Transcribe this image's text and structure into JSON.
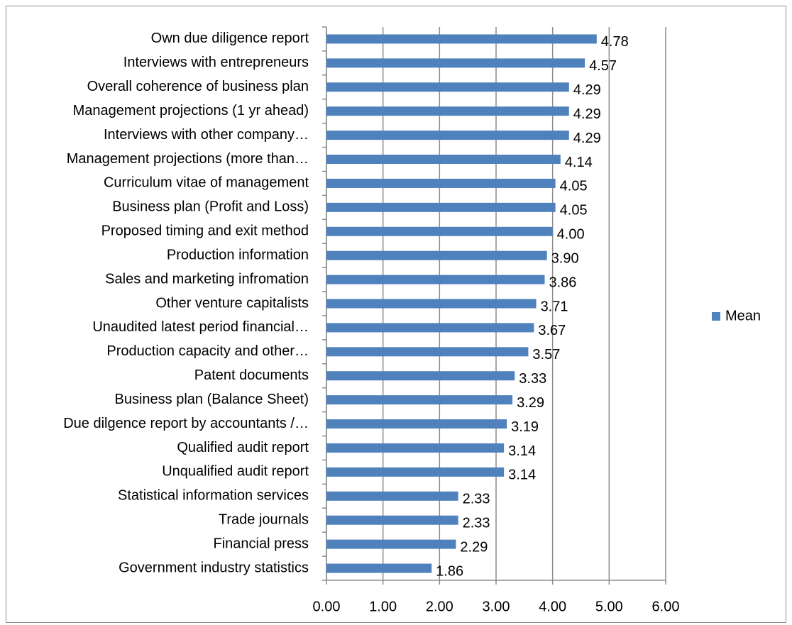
{
  "chart_data": {
    "type": "barh",
    "categories": [
      "Own due diligence report",
      "Interviews with entrepreneurs",
      "Overall coherence of business plan",
      "Management projections (1 yr ahead)",
      "Interviews with other company…",
      "Management projections (more than…",
      "Curriculum vitae of management",
      "Business plan (Profit and Loss)",
      "Proposed timing and exit method",
      "Production information",
      "Sales and marketing infromation",
      "Other venture capitalists",
      "Unaudited latest period financial…",
      "Production capacity and other…",
      "Patent documents",
      "Business plan (Balance Sheet)",
      "Due dilgence report by accountants /…",
      "Qualified audit report",
      "Unqualified audit report",
      "Statistical information services",
      "Trade journals",
      "Financial press",
      "Government industry statistics"
    ],
    "series": [
      {
        "name": "Mean",
        "color": "#4f81bd",
        "values": [
          4.78,
          4.57,
          4.29,
          4.29,
          4.29,
          4.14,
          4.05,
          4.05,
          4.0,
          3.9,
          3.86,
          3.71,
          3.67,
          3.57,
          3.33,
          3.29,
          3.19,
          3.14,
          3.14,
          2.33,
          2.33,
          2.29,
          1.86
        ],
        "value_labels": [
          "4.78",
          "4.57",
          "4.29",
          "4.29",
          "4.29",
          "4.14",
          "4.05",
          "4.05",
          "4.00",
          "3.90",
          "3.86",
          "3.71",
          "3.67",
          "3.57",
          "3.33",
          "3.29",
          "3.19",
          "3.14",
          "3.14",
          "2.33",
          "2.33",
          "2.29",
          "1.86"
        ]
      }
    ],
    "xlim": [
      0,
      6
    ],
    "xticks": [
      {
        "value": 0,
        "label": "0.00"
      },
      {
        "value": 1,
        "label": "1.00"
      },
      {
        "value": 2,
        "label": "2.00"
      },
      {
        "value": 3,
        "label": "3.00"
      },
      {
        "value": 4,
        "label": "4.00"
      },
      {
        "value": 5,
        "label": "5.00"
      },
      {
        "value": 6,
        "label": "6.00"
      }
    ],
    "grid": true,
    "legend": "right"
  }
}
